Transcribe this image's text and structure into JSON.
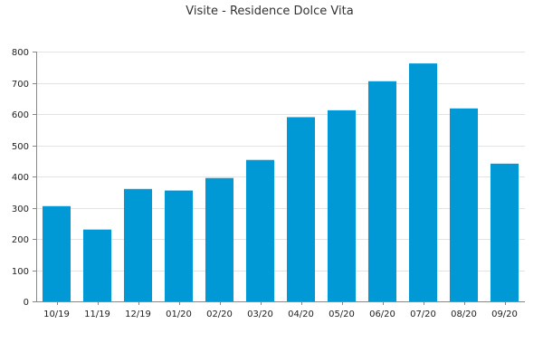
{
  "chart_data": {
    "type": "bar",
    "title": "Visite - Residence Dolce Vita",
    "categories": [
      "10/19",
      "11/19",
      "12/19",
      "01/20",
      "02/20",
      "03/20",
      "04/20",
      "05/20",
      "06/20",
      "07/20",
      "08/20",
      "09/20"
    ],
    "values": [
      305,
      230,
      360,
      355,
      395,
      453,
      590,
      612,
      705,
      762,
      618,
      441
    ],
    "ylim": [
      0,
      800
    ],
    "yticks": [
      0,
      100,
      200,
      300,
      400,
      500,
      600,
      700,
      800
    ],
    "grid": true,
    "bar_color": "#0099d6",
    "grid_color": "#e3e3e3",
    "axis_color": "#888888"
  }
}
